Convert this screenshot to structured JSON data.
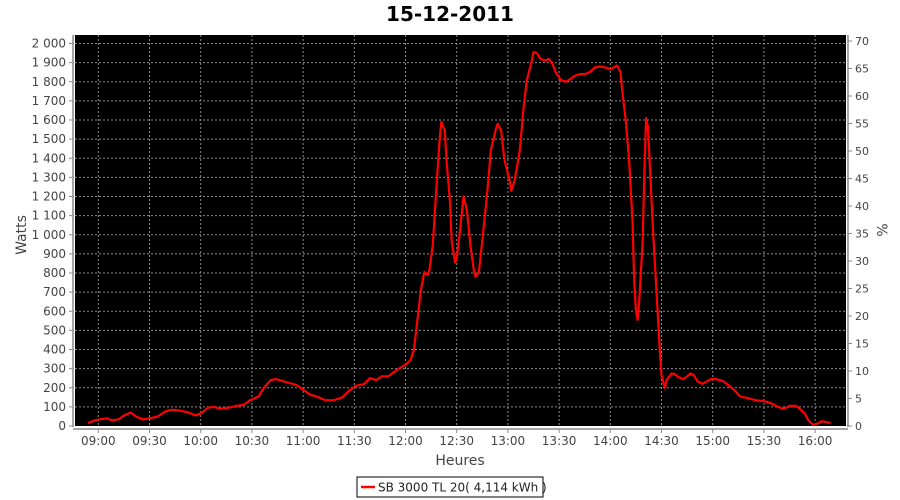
{
  "chart_data": {
    "type": "line",
    "title": "15-12-2011",
    "xlabel": "Heures",
    "ylabel": "Watts",
    "y2label": "%",
    "ylim": [
      0,
      2000
    ],
    "y2lim": [
      0,
      70
    ],
    "x_ticks": [
      "09:00",
      "09:30",
      "10:00",
      "10:30",
      "11:00",
      "11:30",
      "12:00",
      "12:30",
      "13:00",
      "13:30",
      "14:00",
      "14:30",
      "15:00",
      "15:30",
      "16:00"
    ],
    "y_ticks": [
      "0",
      "100",
      "200",
      "300",
      "400",
      "500",
      "600",
      "700",
      "800",
      "900",
      "1 000",
      "1 100",
      "1 200",
      "1 300",
      "1 400",
      "1 500",
      "1 600",
      "1 700",
      "1 800",
      "1 900",
      "2 000"
    ],
    "y2_ticks": [
      "0",
      "5",
      "10",
      "15",
      "20",
      "25",
      "30",
      "35",
      "40",
      "45",
      "50",
      "55",
      "60",
      "65",
      "70"
    ],
    "grid": true,
    "background": "#000000",
    "legend_position": "bottom",
    "series": [
      {
        "name": "SB 3000 TL 20( 4,114 kWh )",
        "color": "#ff0000",
        "x": [
          "08:54",
          "08:58",
          "09:01",
          "09:05",
          "09:08",
          "09:12",
          "09:15",
          "09:19",
          "09:22",
          "09:26",
          "09:30",
          "09:35",
          "09:39",
          "09:43",
          "09:48",
          "09:53",
          "09:57",
          "10:01",
          "10:04",
          "10:08",
          "10:11",
          "10:16",
          "10:21",
          "10:25",
          "10:29",
          "10:34",
          "10:37",
          "10:41",
          "10:44",
          "10:48",
          "10:52",
          "10:56",
          "11:00",
          "11:04",
          "11:09",
          "11:13",
          "11:18",
          "11:23",
          "11:27",
          "11:31",
          "11:36",
          "11:39",
          "11:43",
          "11:46",
          "11:50",
          "11:53",
          "11:57",
          "12:00",
          "12:03",
          "12:05",
          "12:07",
          "12:09",
          "12:11",
          "12:13",
          "12:14",
          "12:16",
          "12:18",
          "12:20",
          "12:21",
          "12:23",
          "12:24",
          "12:26",
          "12:27",
          "12:29",
          "12:30",
          "12:32",
          "12:34",
          "12:36",
          "12:38",
          "12:40",
          "12:41",
          "12:43",
          "12:45",
          "12:48",
          "12:50",
          "12:53",
          "12:54",
          "12:56",
          "12:58",
          "13:01",
          "13:02",
          "13:04",
          "13:07",
          "13:09",
          "13:11",
          "13:14",
          "13:15",
          "13:17",
          "13:19",
          "13:22",
          "13:24",
          "13:26",
          "13:28",
          "13:31",
          "13:34",
          "13:36",
          "13:39",
          "13:42",
          "13:45",
          "13:48",
          "13:51",
          "13:54",
          "13:57",
          "14:00",
          "14:02",
          "14:04",
          "14:06",
          "14:07",
          "14:09",
          "14:11",
          "14:13",
          "14:14",
          "14:15",
          "14:16",
          "14:17",
          "14:19",
          "14:20",
          "14:21",
          "14:22",
          "14:23",
          "14:25",
          "14:27",
          "14:29",
          "14:30",
          "14:32",
          "14:33",
          "14:36",
          "14:38",
          "14:40",
          "14:43",
          "14:45",
          "14:47",
          "14:49",
          "14:51",
          "14:54",
          "14:56",
          "14:59",
          "15:02",
          "15:06",
          "15:09",
          "15:13",
          "15:16",
          "15:21",
          "15:25",
          "15:30",
          "15:34",
          "15:37",
          "15:41",
          "15:43",
          "15:45",
          "15:49",
          "15:51",
          "15:54",
          "15:56",
          "15:59",
          "16:02",
          "16:04",
          "16:07",
          "16:09"
        ],
        "values": [
          15,
          30,
          35,
          40,
          30,
          35,
          55,
          70,
          50,
          35,
          40,
          50,
          75,
          85,
          80,
          70,
          55,
          70,
          95,
          100,
          90,
          95,
          105,
          110,
          135,
          155,
          200,
          240,
          245,
          235,
          225,
          215,
          190,
          165,
          150,
          135,
          135,
          150,
          185,
          210,
          220,
          250,
          240,
          260,
          260,
          280,
          305,
          320,
          345,
          400,
          555,
          710,
          805,
          790,
          815,
          945,
          1230,
          1495,
          1590,
          1545,
          1390,
          1180,
          970,
          855,
          875,
          1025,
          1200,
          1130,
          945,
          815,
          780,
          805,
          970,
          1230,
          1440,
          1555,
          1580,
          1545,
          1390,
          1285,
          1230,
          1285,
          1440,
          1650,
          1805,
          1910,
          1955,
          1950,
          1920,
          1910,
          1920,
          1895,
          1850,
          1810,
          1800,
          1810,
          1830,
          1840,
          1840,
          1850,
          1875,
          1880,
          1875,
          1865,
          1875,
          1885,
          1850,
          1755,
          1600,
          1390,
          1075,
          760,
          605,
          555,
          660,
          970,
          1335,
          1610,
          1570,
          1390,
          1025,
          710,
          395,
          265,
          200,
          240,
          275,
          270,
          255,
          245,
          260,
          275,
          265,
          235,
          220,
          230,
          245,
          245,
          235,
          215,
          185,
          155,
          145,
          135,
          130,
          120,
          105,
          90,
          95,
          105,
          105,
          90,
          65,
          30,
          5,
          15,
          25,
          20,
          15
        ]
      }
    ]
  }
}
